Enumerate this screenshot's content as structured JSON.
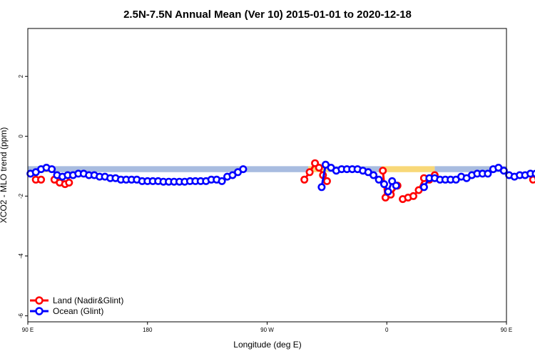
{
  "chart_data": {
    "type": "line",
    "title": "2.5N-7.5N Annual Mean (Ver 10)   2015-01-01 to 2020-12-18",
    "xlabel": "Longitude (deg E)",
    "ylabel": "XCO2 - MLO trend (ppm)",
    "xlim": [
      90,
      450
    ],
    "ylim": [
      -6.2,
      3.6
    ],
    "x_ticks": [
      {
        "value": 90,
        "label": "90 E"
      },
      {
        "value": 180,
        "label": "180"
      },
      {
        "value": 270,
        "label": "90 W"
      },
      {
        "value": 360,
        "label": "0"
      },
      {
        "value": 450,
        "label": "90 E"
      },
      {
        "value": 540,
        "label": "180"
      }
    ],
    "y_ticks": [
      {
        "value": 2,
        "label": "2"
      },
      {
        "value": 0,
        "label": "0"
      },
      {
        "value": -2,
        "label": "-2"
      },
      {
        "value": -4,
        "label": "-4"
      },
      {
        "value": -6,
        "label": "-6"
      }
    ],
    "x_tick_positions_note": "",
    "legend_position": "bottom-left",
    "grid": false,
    "colors": {
      "land": "#ff0000",
      "ocean": "#0000ff",
      "land_band": "#f8d878",
      "ocean_band": "#a8bce0"
    },
    "series": [
      {
        "name": "Land (Nadir&Glint)",
        "color": "#ff0000",
        "segments": [
          [
            [
              96,
              -1.45
            ],
            [
              100,
              -1.45
            ]
          ],
          [
            [
              110,
              -1.45
            ],
            [
              114,
              -1.55
            ],
            [
              118,
              -1.6
            ],
            [
              121,
              -1.55
            ]
          ],
          [
            [
              298,
              -1.45
            ],
            [
              302,
              -1.2
            ],
            [
              306,
              -0.9
            ],
            [
              309,
              -1.05
            ],
            [
              312,
              -1.3
            ],
            [
              315,
              -1.5
            ]
          ],
          [
            [
              357,
              -1.15
            ],
            [
              359,
              -2.05
            ],
            [
              363,
              -1.95
            ],
            [
              368,
              -1.65
            ]
          ],
          [
            [
              372,
              -2.1
            ],
            [
              376,
              -2.05
            ],
            [
              380,
              -2.0
            ],
            [
              384,
              -1.8
            ],
            [
              388,
              -1.4
            ],
            [
              392,
              -1.45
            ],
            [
              396,
              -1.3
            ]
          ],
          [
            [
              470,
              -1.45
            ],
            [
              474,
              -1.4
            ],
            [
              478,
              -1.4
            ]
          ],
          [
            [
              482,
              -1.45
            ],
            [
              486,
              -1.6
            ],
            [
              490,
              -1.55
            ]
          ]
        ]
      },
      {
        "name": "Ocean (Glint)",
        "color": "#0000ff",
        "segments": [
          [
            [
              92,
              -1.25
            ],
            [
              96,
              -1.2
            ],
            [
              100,
              -1.1
            ],
            [
              104,
              -1.05
            ],
            [
              108,
              -1.1
            ],
            [
              112,
              -1.3
            ],
            [
              116,
              -1.35
            ],
            [
              120,
              -1.3
            ],
            [
              124,
              -1.3
            ],
            [
              128,
              -1.25
            ],
            [
              132,
              -1.25
            ],
            [
              136,
              -1.3
            ],
            [
              140,
              -1.3
            ],
            [
              144,
              -1.35
            ],
            [
              148,
              -1.35
            ],
            [
              152,
              -1.4
            ],
            [
              156,
              -1.4
            ],
            [
              160,
              -1.45
            ],
            [
              164,
              -1.45
            ],
            [
              168,
              -1.45
            ],
            [
              172,
              -1.45
            ],
            [
              176,
              -1.5
            ],
            [
              180,
              -1.5
            ],
            [
              184,
              -1.5
            ],
            [
              188,
              -1.5
            ],
            [
              192,
              -1.52
            ],
            [
              196,
              -1.52
            ],
            [
              200,
              -1.52
            ],
            [
              204,
              -1.52
            ],
            [
              208,
              -1.52
            ],
            [
              212,
              -1.5
            ],
            [
              216,
              -1.5
            ],
            [
              220,
              -1.5
            ],
            [
              224,
              -1.5
            ],
            [
              228,
              -1.45
            ],
            [
              232,
              -1.45
            ],
            [
              236,
              -1.5
            ],
            [
              240,
              -1.35
            ],
            [
              244,
              -1.3
            ],
            [
              248,
              -1.2
            ],
            [
              252,
              -1.1
            ]
          ],
          [
            [
              311,
              -1.7
            ],
            [
              314,
              -0.95
            ],
            [
              318,
              -1.05
            ],
            [
              322,
              -1.15
            ],
            [
              326,
              -1.1
            ],
            [
              330,
              -1.1
            ],
            [
              334,
              -1.1
            ],
            [
              338,
              -1.1
            ],
            [
              342,
              -1.15
            ],
            [
              346,
              -1.2
            ],
            [
              350,
              -1.3
            ],
            [
              354,
              -1.45
            ],
            [
              358,
              -1.6
            ],
            [
              361,
              -1.85
            ],
            [
              364,
              -1.5
            ],
            [
              367,
              -1.65
            ]
          ],
          [
            [
              388,
              -1.7
            ],
            [
              392,
              -1.4
            ],
            [
              396,
              -1.4
            ],
            [
              400,
              -1.45
            ],
            [
              404,
              -1.45
            ],
            [
              408,
              -1.45
            ],
            [
              412,
              -1.45
            ],
            [
              416,
              -1.35
            ],
            [
              420,
              -1.4
            ],
            [
              424,
              -1.3
            ],
            [
              428,
              -1.25
            ],
            [
              432,
              -1.25
            ],
            [
              436,
              -1.25
            ],
            [
              440,
              -1.1
            ],
            [
              444,
              -1.05
            ],
            [
              448,
              -1.15
            ],
            [
              452,
              -1.3
            ],
            [
              456,
              -1.35
            ],
            [
              460,
              -1.3
            ],
            [
              464,
              -1.3
            ],
            [
              468,
              -1.25
            ],
            [
              472,
              -1.25
            ],
            [
              476,
              -1.3
            ],
            [
              480,
              -1.3
            ],
            [
              484,
              -1.35
            ],
            [
              488,
              -1.35
            ],
            [
              492,
              -1.4
            ],
            [
              496,
              -1.4
            ]
          ]
        ]
      }
    ],
    "band": {
      "ymin": -1.2,
      "ymax": -1.0,
      "land_ranges": [
        [
          100,
          110
        ],
        [
          301,
          316
        ],
        [
          356,
          396
        ],
        [
          466,
          496
        ]
      ],
      "ocean_ranges": [
        [
          90,
          100
        ],
        [
          110,
          301
        ],
        [
          316,
          356
        ],
        [
          396,
          466
        ],
        [
          496,
          540
        ]
      ]
    }
  }
}
